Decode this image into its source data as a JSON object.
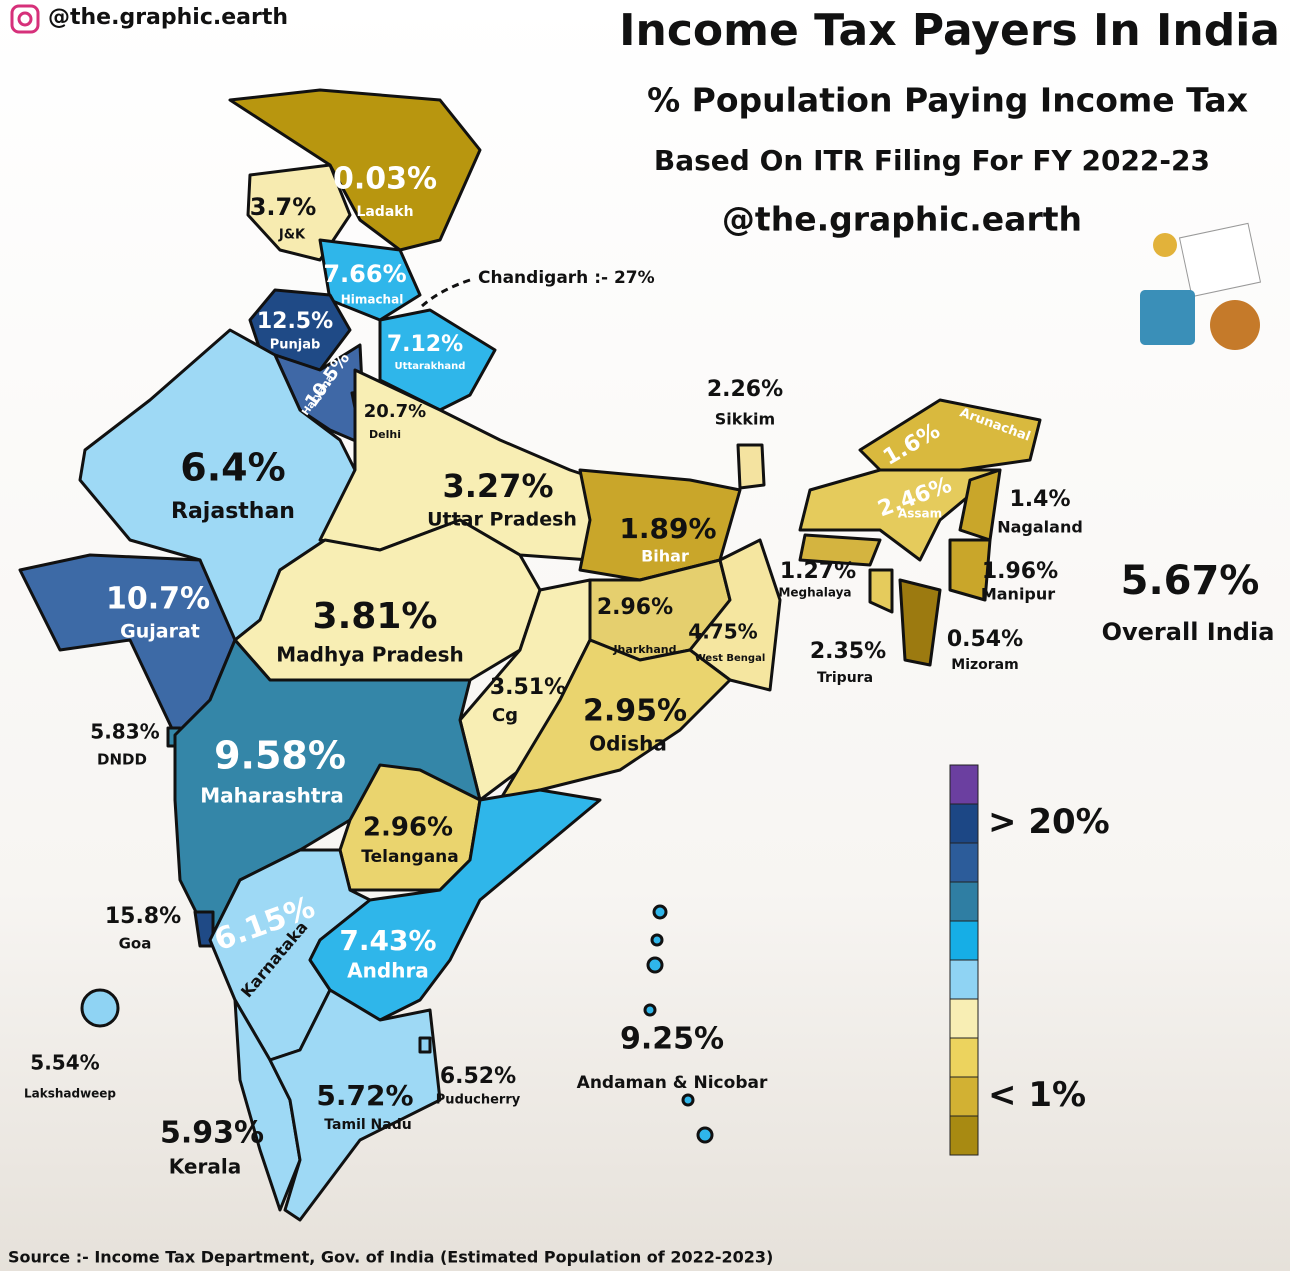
{
  "header": {
    "handle": "@the.graphic.earth",
    "title": "Income Tax Payers In India",
    "subtitle": "% Population Paying Income Tax",
    "basis": "Based On ITR Filing For FY 2022-23",
    "watermark": "@the.graphic.earth"
  },
  "regions": [
    {
      "name": "Ladakh",
      "label": "0.03%",
      "color": "#b8960f"
    },
    {
      "name": "J&K",
      "label": "3.7%",
      "color": "#f7ebb0"
    },
    {
      "name": "Himachal",
      "label": "7.66%",
      "color": "#2fb6ea"
    },
    {
      "name": "Punjab",
      "label": "12.5%",
      "color": "#1f4a86"
    },
    {
      "name": "Haryana",
      "label": "10.5%",
      "color": "#3f68a6"
    },
    {
      "name": "Uttarakhand",
      "label": "7.12%",
      "color": "#2fb6ea"
    },
    {
      "name": "Delhi",
      "label": "20.7%",
      "color": "#1c4785"
    },
    {
      "name": "Rajasthan",
      "label": "6.4%",
      "color": "#9ed9f5"
    },
    {
      "name": "Uttar Pradesh",
      "label": "3.27%",
      "color": "#f8eeb4"
    },
    {
      "name": "Bihar",
      "label": "1.89%",
      "color": "#c9a62a"
    },
    {
      "name": "Sikkim",
      "label": "2.26%",
      "color": "#f4e3a0"
    },
    {
      "name": "Arunachal",
      "label": "1.6%",
      "color": "#d9b93e"
    },
    {
      "name": "Assam",
      "label": "2.46%",
      "color": "#e5cb5c"
    },
    {
      "name": "Nagaland",
      "label": "1.4%",
      "color": "#c9a62a"
    },
    {
      "name": "Meghalaya",
      "label": "1.27%",
      "color": "#d4b440"
    },
    {
      "name": "Manipur",
      "label": "1.96%",
      "color": "#c9a62a"
    },
    {
      "name": "Tripura",
      "label": "2.35%",
      "color": "#e5cb5c"
    },
    {
      "name": "Mizoram",
      "label": "0.54%",
      "color": "#9c7a10"
    },
    {
      "name": "Gujarat",
      "label": "10.7%",
      "color": "#3d6aa6"
    },
    {
      "name": "Madhya Pradesh",
      "label": "3.81%",
      "color": "#f8eeb4"
    },
    {
      "name": "Jharkhand",
      "label": "2.96%",
      "color": "#e5cf6e"
    },
    {
      "name": "West Bengal",
      "label": "4.75%",
      "color": "#f5e6a0"
    },
    {
      "name": "Cg",
      "label": "3.51%",
      "color": "#f8eeb4"
    },
    {
      "name": "Odisha",
      "label": "2.95%",
      "color": "#ead46e"
    },
    {
      "name": "DNDD",
      "label": "5.83%",
      "color": "#3486a8"
    },
    {
      "name": "Maharashtra",
      "label": "9.58%",
      "color": "#3486a8"
    },
    {
      "name": "Telangana",
      "label": "2.96%",
      "color": "#ead46e"
    },
    {
      "name": "Goa",
      "label": "15.8%",
      "color": "#1f4a86"
    },
    {
      "name": "Karnataka",
      "label": "6.15%",
      "color": "#9ed9f5"
    },
    {
      "name": "Andhra",
      "label": "7.43%",
      "color": "#2fb6ea"
    },
    {
      "name": "Lakshadweep",
      "label": "5.54%",
      "color": "#8fd3f3"
    },
    {
      "name": "Kerala",
      "label": "5.93%",
      "color": "#9ed9f5"
    },
    {
      "name": "Tamil Nadu",
      "label": "5.72%",
      "color": "#9ed9f5"
    },
    {
      "name": "Puducherry",
      "label": "6.52%",
      "color": "#8fd3f3"
    },
    {
      "name": "Andaman & Nicobar",
      "label": "9.25%",
      "color": "#2fb6ea"
    }
  ],
  "annotation": "Chandigarh :- 27%",
  "overall": {
    "label": "5.67%",
    "name": "Overall India"
  },
  "legend": {
    "colors": [
      "#6b3fa0",
      "#1c4785",
      "#2c5c9a",
      "#2f7ea3",
      "#16aee6",
      "#8fd3f3",
      "#f8eeb4",
      "#ecd35e",
      "#d2b133",
      "#a88a12"
    ],
    "top_label": "> 20%",
    "bottom_label": "< 1%"
  },
  "source": "Source :- Income Tax Department, Gov. of India (Estimated Population of 2022-2023)"
}
